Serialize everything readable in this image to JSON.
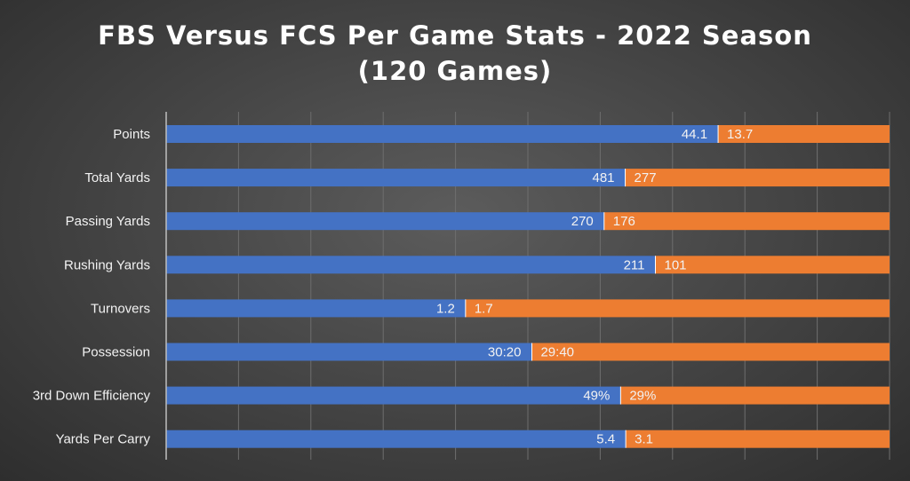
{
  "chart_data": {
    "type": "bar",
    "orientation": "horizontal",
    "stacked": "100%",
    "title_lines": [
      "FBS Versus FCS Per Game Stats - 2022 Season",
      "(120 Games)"
    ],
    "categories": [
      "Points",
      "Total Yards",
      "Passing Yards",
      "Rushing Yards",
      "Turnovers",
      "Possession",
      "3rd Down Efficiency",
      "Yards Per Carry"
    ],
    "series": [
      {
        "values": [
          44.1,
          481,
          270,
          211,
          1.2,
          30.33,
          49,
          5.4
        ],
        "labels": [
          "44.1",
          "481",
          "270",
          "211",
          "1.2",
          "30:20",
          "49%",
          "5.4"
        ],
        "color": "#4472c4"
      },
      {
        "values": [
          13.7,
          277,
          176,
          101,
          1.7,
          29.67,
          29,
          3.1
        ],
        "labels": [
          "13.7",
          "277",
          "176",
          "101",
          "1.7",
          "29:40",
          "29%",
          "3.1"
        ],
        "color": "#ed7d31"
      }
    ],
    "xlim": [
      0,
      1
    ],
    "grid": true,
    "legend": "none",
    "colors": {
      "background": "#474747",
      "text": "#f2f2f2",
      "gridline": "#6e6e6e"
    }
  }
}
